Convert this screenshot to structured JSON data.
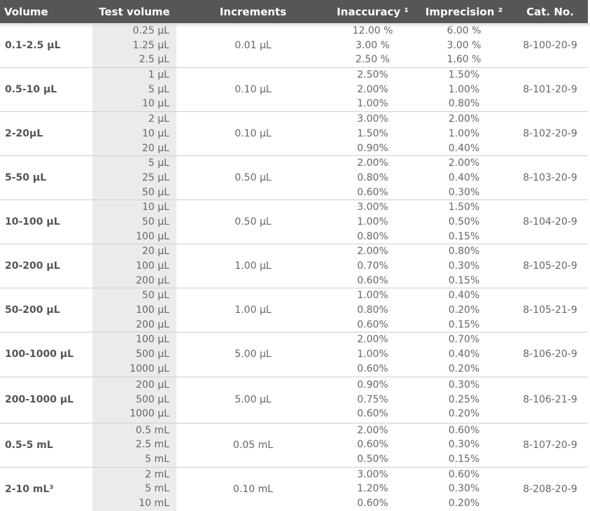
{
  "header": {
    "volume": "Volume",
    "test_volume": "Test volume",
    "increments": "Increments",
    "inaccuracy": "Inaccuracy ¹",
    "imprecision": "Imprecision ²",
    "cat_no": "Cat. No."
  },
  "rows": [
    {
      "volume": "0.1-2.5 µL",
      "increment": "0.01 µL",
      "cat": "8-100-20-9",
      "tests": [
        "0.25 µL",
        "1.25 µL",
        "2.5 µL"
      ],
      "inaccuracy": [
        "12.00 %",
        "3.00 %",
        "2.50 %"
      ],
      "imprecision": [
        "6.00 %",
        "3.00 %",
        "1.60 %"
      ]
    },
    {
      "volume": "0.5-10 µL",
      "increment": "0.10 µL",
      "cat": "8-101-20-9",
      "tests": [
        "1 µL",
        "5 µL",
        "10 µL"
      ],
      "inaccuracy": [
        "2.50%",
        "2.00%",
        "1.00%"
      ],
      "imprecision": [
        "1.50%",
        "1.00%",
        "0.80%"
      ]
    },
    {
      "volume": "2-20µL",
      "increment": "0.10 µL",
      "cat": "8-102-20-9",
      "tests": [
        "2 µL",
        "10 µL",
        "20 µL"
      ],
      "inaccuracy": [
        "3.00%",
        "1.50%",
        "0.90%"
      ],
      "imprecision": [
        "2.00%",
        "1.00%",
        "0.40%"
      ]
    },
    {
      "volume": "5-50 µL",
      "increment": "0.50 µL",
      "cat": "8-103-20-9",
      "tests": [
        "5 µL",
        "25 µL",
        "50 µL"
      ],
      "inaccuracy": [
        "2.00%",
        "0.80%",
        "0.60%"
      ],
      "imprecision": [
        "2.00%",
        "0.40%",
        "0.30%"
      ]
    },
    {
      "volume": "10-100 µL",
      "increment": "0.50 µL",
      "cat": "8-104-20-9",
      "tests": [
        "10 µL",
        "50 µL",
        "100 µL"
      ],
      "inaccuracy": [
        "3.00%",
        "1.00%",
        "0.80%"
      ],
      "imprecision": [
        "1.50%",
        "0.50%",
        "0.15%"
      ]
    },
    {
      "volume": "20-200 µL",
      "increment": "1.00 µL",
      "cat": "8-105-20-9",
      "tests": [
        "20 µL",
        "100 µL",
        "200 µL"
      ],
      "inaccuracy": [
        "2.00%",
        "0.70%",
        "0.60%"
      ],
      "imprecision": [
        "0.80%",
        "0.30%",
        "0.15%"
      ]
    },
    {
      "volume": "50-200 µL",
      "increment": "1.00 µL",
      "cat": "8-105-21-9",
      "tests": [
        "50 µL",
        "100 µL",
        "200 µL"
      ],
      "inaccuracy": [
        "1.00%",
        "0.80%",
        "0.60%"
      ],
      "imprecision": [
        "0.40%",
        "0.20%",
        "0.15%"
      ]
    },
    {
      "volume": "100-1000 µL",
      "increment": "5.00 µL",
      "cat": "8-106-20-9",
      "tests": [
        "100 µL",
        "500 µL",
        "1000 µL"
      ],
      "inaccuracy": [
        "2.00%",
        "1.00%",
        "0.60%"
      ],
      "imprecision": [
        "0.70%",
        "0.40%",
        "0.20%"
      ]
    },
    {
      "volume": "200-1000 µL",
      "increment": "5.00 µL",
      "cat": "8-106-21-9",
      "tests": [
        "200 µL",
        "500 µL",
        "1000 µL"
      ],
      "inaccuracy": [
        "0.90%",
        "0.75%",
        "0.60%"
      ],
      "imprecision": [
        "0.30%",
        "0.25%",
        "0.20%"
      ]
    },
    {
      "volume": "0.5-5 mL",
      "increment": "0.05 mL",
      "cat": "8-107-20-9",
      "tests": [
        "0.5 mL",
        "2.5 mL",
        "5 mL"
      ],
      "inaccuracy": [
        "2.00%",
        "0.60%",
        "0.50%"
      ],
      "imprecision": [
        "0.60%",
        "0.30%",
        "0.15%"
      ]
    },
    {
      "volume": "2-10 mL³",
      "increment": "0.10 mL",
      "cat": "8-208-20-9",
      "tests": [
        "2 mL",
        "5 mL",
        "10 mL"
      ],
      "inaccuracy": [
        "3.00%",
        "1.20%",
        "0.60%"
      ],
      "imprecision": [
        "0.60%",
        "0.30%",
        "0.20%"
      ]
    }
  ]
}
